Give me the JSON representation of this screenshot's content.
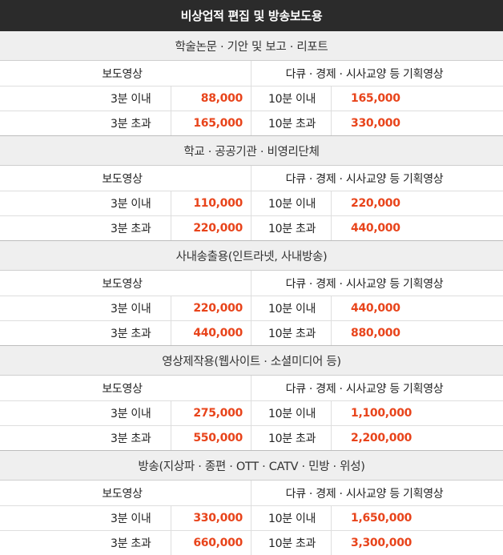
{
  "title": "비상업적 편집 및 방송보도용",
  "sub_headers": {
    "news": "보도영상",
    "planned": "다큐 · 경제 · 시사교양 등 기획영상"
  },
  "sections": [
    {
      "name": "학술논문 · 기안 및 보고 · 리포트",
      "rows": [
        {
          "label1": "3분 이내",
          "value1": "88,000",
          "label2": "10분 이내",
          "value2": "165,000"
        },
        {
          "label1": "3분 초과",
          "value1": "165,000",
          "label2": "10분 초과",
          "value2": "330,000"
        }
      ]
    },
    {
      "name": "학교 · 공공기관 · 비영리단체",
      "rows": [
        {
          "label1": "3분 이내",
          "value1": "110,000",
          "label2": "10분 이내",
          "value2": "220,000"
        },
        {
          "label1": "3분 초과",
          "value1": "220,000",
          "label2": "10분 초과",
          "value2": "440,000"
        }
      ]
    },
    {
      "name": "사내송출용(인트라넷, 사내방송)",
      "rows": [
        {
          "label1": "3분 이내",
          "value1": "220,000",
          "label2": "10분 이내",
          "value2": "440,000"
        },
        {
          "label1": "3분 초과",
          "value1": "440,000",
          "label2": "10분 초과",
          "value2": "880,000"
        }
      ]
    },
    {
      "name": "영상제작용(웹사이트 · 소셜미디어 등)",
      "rows": [
        {
          "label1": "3분 이내",
          "value1": "275,000",
          "label2": "10분 이내",
          "value2": "1,100,000"
        },
        {
          "label1": "3분 초과",
          "value1": "550,000",
          "label2": "10분 초과",
          "value2": "2,200,000"
        }
      ]
    },
    {
      "name": "방송(지상파 · 종편 · OTT · CATV · 민방 · 위성)",
      "rows": [
        {
          "label1": "3분 이내",
          "value1": "330,000",
          "label2": "10분 이내",
          "value2": "1,650,000"
        },
        {
          "label1": "3분 초과",
          "value1": "660,000",
          "label2": "10분 초과",
          "value2": "3,300,000"
        }
      ]
    }
  ],
  "colors": {
    "header_bg": "#2b2b2b",
    "section_bg": "#efefef",
    "price": "#e8441b"
  }
}
